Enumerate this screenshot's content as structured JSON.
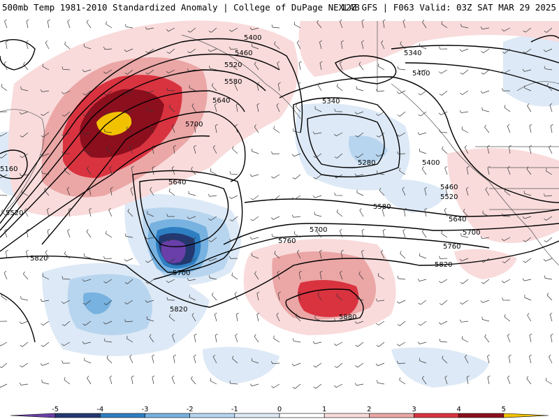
{
  "header": {
    "left_title": "500mb Temp 1981-2010 Standardized Anomaly | College of DuPage NEXLAB",
    "right_title": "12Z GFS | F063 Valid: 03Z SAT MAR 29 2025"
  },
  "contours": {
    "height_labels": [
      "5400",
      "5460",
      "5520",
      "5580",
      "5640",
      "5700",
      "5340",
      "5400",
      "5340",
      "5280",
      "5400",
      "5460",
      "5520",
      "5580",
      "5640",
      "5700",
      "5760",
      "5820",
      "5640",
      "5700",
      "5700",
      "5820",
      "5880",
      "5820",
      "5760",
      "5520",
      "5160",
      "5820"
    ]
  },
  "colorbar": {
    "tick_labels": [
      "-5",
      "-4",
      "-3",
      "-2",
      "-1",
      "0",
      "1",
      "2",
      "3",
      "4",
      "5"
    ],
    "colors": [
      "#6a3fa8",
      "#233870",
      "#2e7ec2",
      "#77b2e0",
      "#b8d5ef",
      "#dde9f6",
      "#ffffff",
      "#f9dbdb",
      "#eba6a6",
      "#d93340",
      "#8c0f1e",
      "#f2c200"
    ]
  }
}
